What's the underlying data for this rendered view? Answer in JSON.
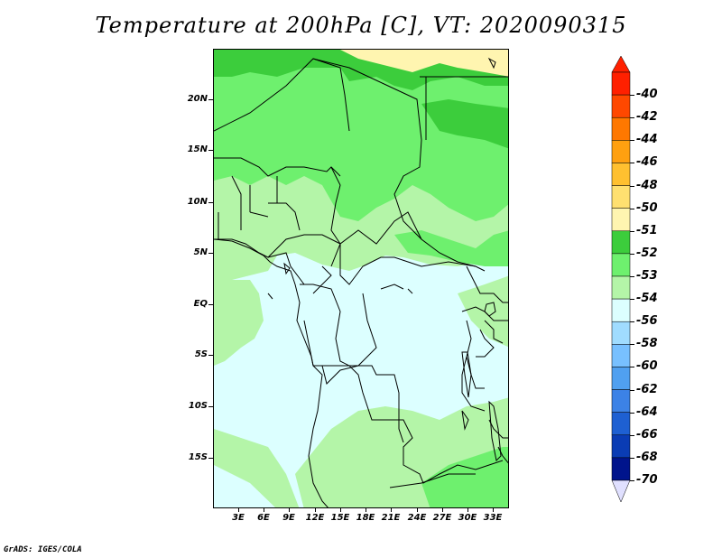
{
  "title": "Temperature at 200hPa [C], VT: 2020090315",
  "map": {
    "lat_labels": [
      "20N",
      "15N",
      "10N",
      "5N",
      "EQ",
      "5S",
      "10S",
      "15S"
    ],
    "lon_labels": [
      "3E",
      "6E",
      "9E",
      "12E",
      "15E",
      "18E",
      "21E",
      "24E",
      "27E",
      "30E",
      "33E"
    ],
    "field_colors": {
      "minus50": "#fff5b0",
      "minus51": "#3ccd3c",
      "minus52": "#6ef06e",
      "minus53": "#b4f5a8",
      "minus54": "#dcffff"
    }
  },
  "colorbar": {
    "labels": [
      "-40",
      "-42",
      "-44",
      "-46",
      "-48",
      "-50",
      "-51",
      "-52",
      "-53",
      "-54",
      "-56",
      "-58",
      "-60",
      "-62",
      "-64",
      "-66",
      "-68",
      "-70"
    ],
    "colors": [
      "#ff2000",
      "#ff4800",
      "#ff7800",
      "#ffa010",
      "#ffc030",
      "#ffe070",
      "#fff5b0",
      "#3ccd3c",
      "#6ef06e",
      "#b4f5a8",
      "#dcffff",
      "#a0dcff",
      "#78c0ff",
      "#50a0f0",
      "#3c82e6",
      "#1e60d2",
      "#0a3cb4",
      "#00148c"
    ],
    "end_low_color": "#e0e0ff"
  },
  "footer": "GrADS: IGES/COLA"
}
